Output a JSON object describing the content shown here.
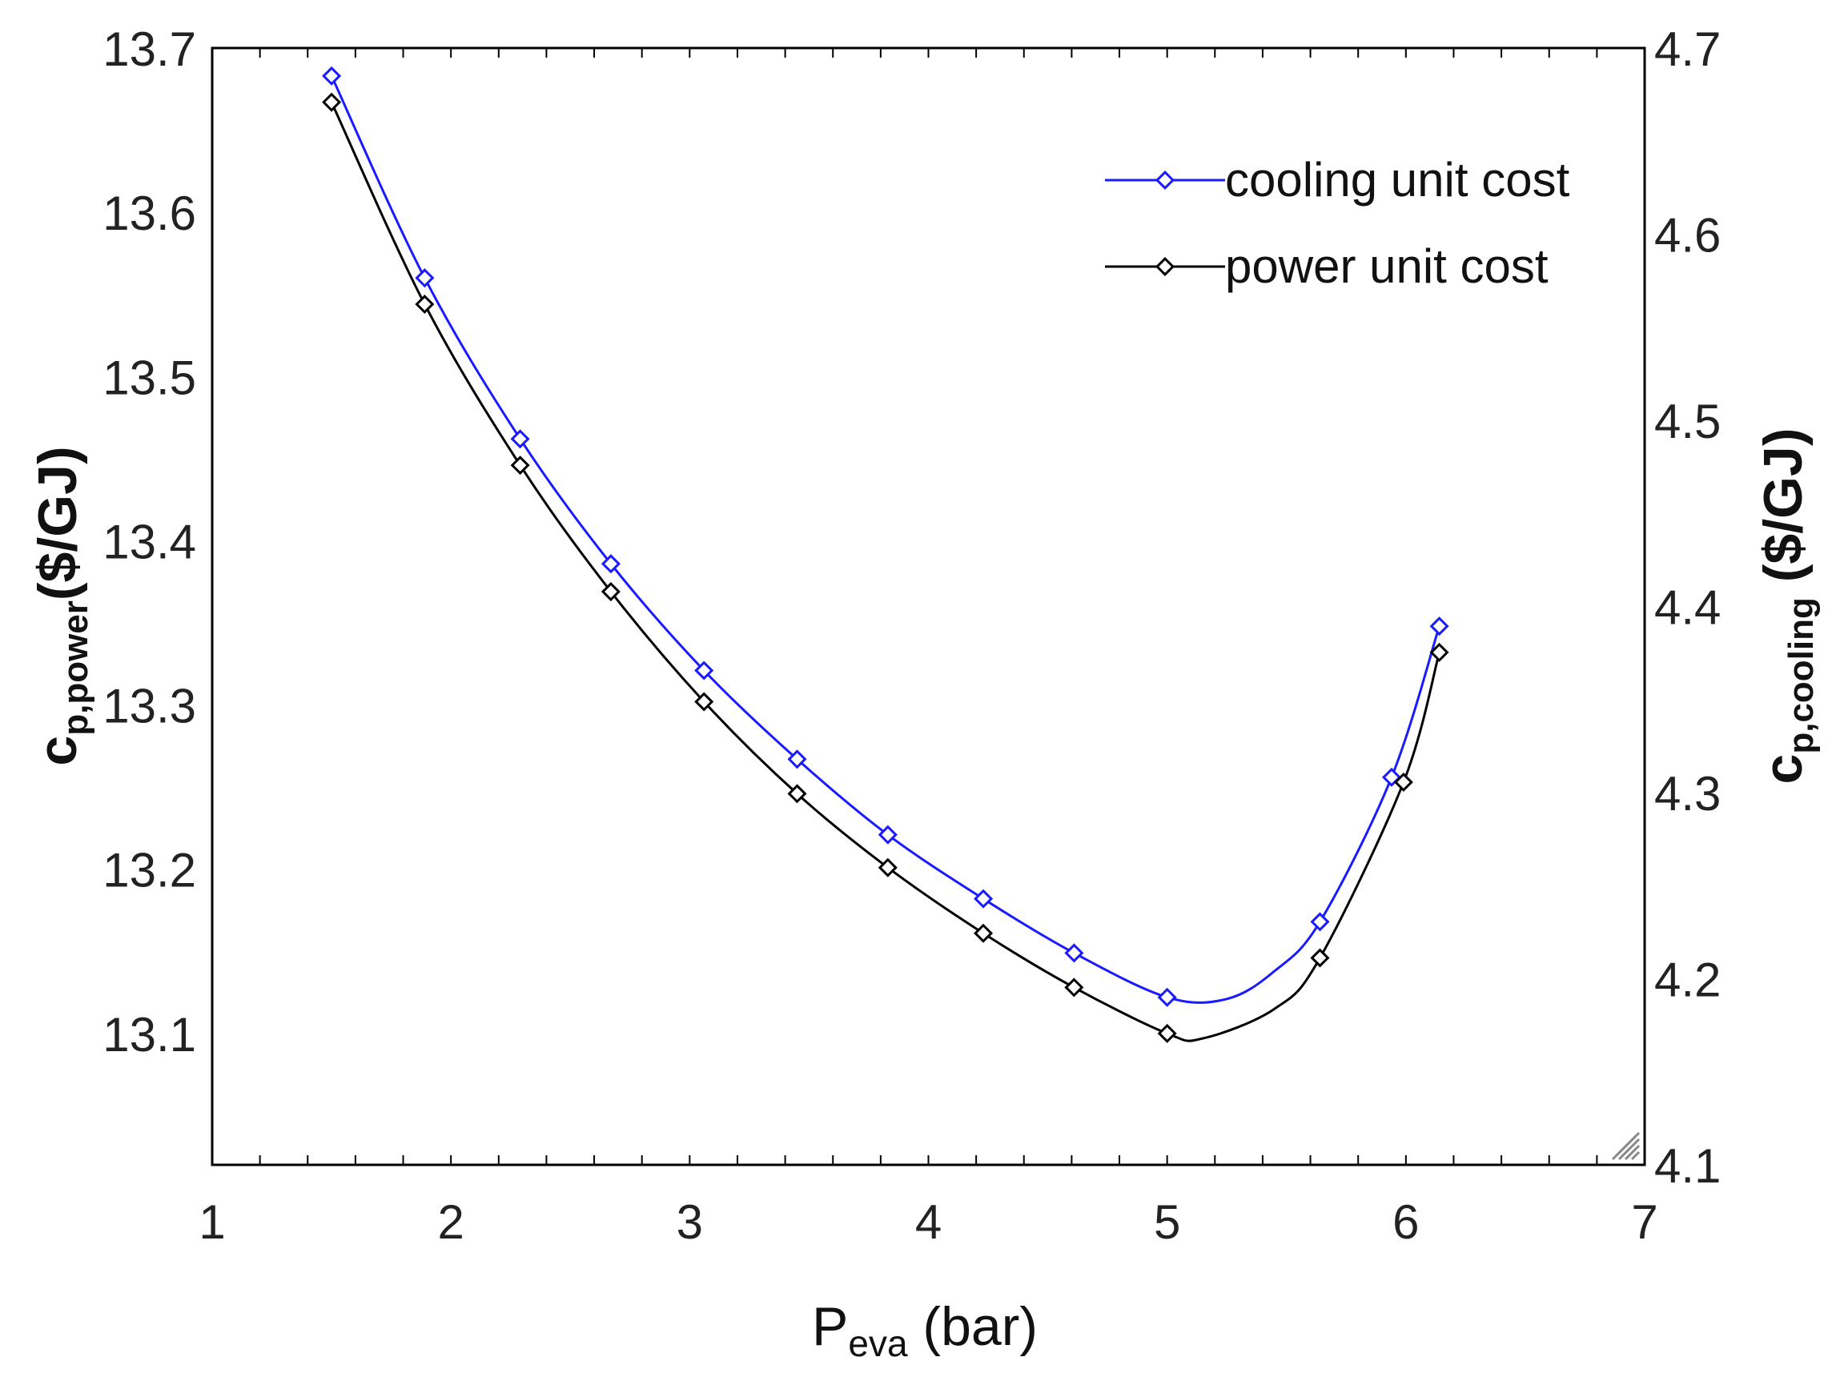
{
  "chart_data": {
    "type": "line",
    "x_axis": {
      "label_main": "P",
      "label_sub": "eva",
      "label_tail": " (bar)",
      "range": [
        1,
        7
      ],
      "ticks": [
        1,
        2,
        3,
        4,
        5,
        6,
        7
      ]
    },
    "y_axis_left": {
      "label_main": "c",
      "label_sub": "p,power",
      "label_tail": "($/GJ)",
      "range": [
        13.02,
        13.7
      ],
      "ticks": [
        13.1,
        13.2,
        13.3,
        13.4,
        13.5,
        13.6,
        13.7
      ],
      "tick_labels": [
        "13.1",
        "13.2",
        "13.3",
        "13.4",
        "13.5",
        "13.6",
        "13.7"
      ]
    },
    "y_axis_right": {
      "label_main": "c",
      "label_sub": "p,cooling",
      "label_tail": " ($/GJ)",
      "range": [
        4.1,
        4.7
      ],
      "ticks": [
        4.1,
        4.2,
        4.3,
        4.4,
        4.5,
        4.6,
        4.7
      ],
      "tick_labels": [
        "4.1",
        "4.2",
        "4.3",
        "4.4",
        "4.5",
        "4.6",
        "4.7"
      ]
    },
    "legend_position": "top-right",
    "series": [
      {
        "name": "cooling unit cost",
        "color": "#1a1aff",
        "axis": "left",
        "marker": "diamond",
        "x": [
          1.5,
          1.89,
          2.29,
          2.67,
          3.06,
          3.45,
          3.83,
          4.23,
          4.61,
          5.0,
          5.64,
          5.94,
          6.14
        ],
        "values": [
          13.683,
          13.56,
          13.462,
          13.386,
          13.321,
          13.267,
          13.221,
          13.182,
          13.149,
          13.122,
          13.168,
          13.256,
          13.348
        ],
        "curve_x": [
          1.5,
          1.89,
          2.29,
          2.67,
          3.06,
          3.45,
          3.83,
          4.23,
          4.61,
          5.0,
          5.25,
          5.45,
          5.64,
          5.94,
          6.14
        ],
        "curve_y": [
          13.683,
          13.56,
          13.462,
          13.386,
          13.321,
          13.267,
          13.221,
          13.182,
          13.149,
          13.122,
          13.121,
          13.138,
          13.168,
          13.256,
          13.348
        ]
      },
      {
        "name": "power unit cost",
        "color": "#000000",
        "axis": "left",
        "marker": "diamond",
        "x": [
          1.5,
          1.89,
          2.29,
          2.67,
          3.06,
          3.45,
          3.83,
          4.23,
          4.61,
          5.0,
          5.64,
          5.99,
          6.14
        ],
        "values": [
          13.667,
          13.544,
          13.446,
          13.369,
          13.302,
          13.246,
          13.201,
          13.161,
          13.128,
          13.1,
          13.146,
          13.253,
          13.332
        ],
        "curve_x": [
          1.5,
          1.89,
          2.29,
          2.67,
          3.06,
          3.45,
          3.83,
          4.23,
          4.61,
          5.0,
          5.15,
          5.45,
          5.64,
          5.99,
          6.14
        ],
        "curve_y": [
          13.667,
          13.544,
          13.446,
          13.369,
          13.302,
          13.246,
          13.201,
          13.161,
          13.128,
          13.1,
          13.097,
          13.115,
          13.146,
          13.253,
          13.332
        ]
      }
    ]
  }
}
